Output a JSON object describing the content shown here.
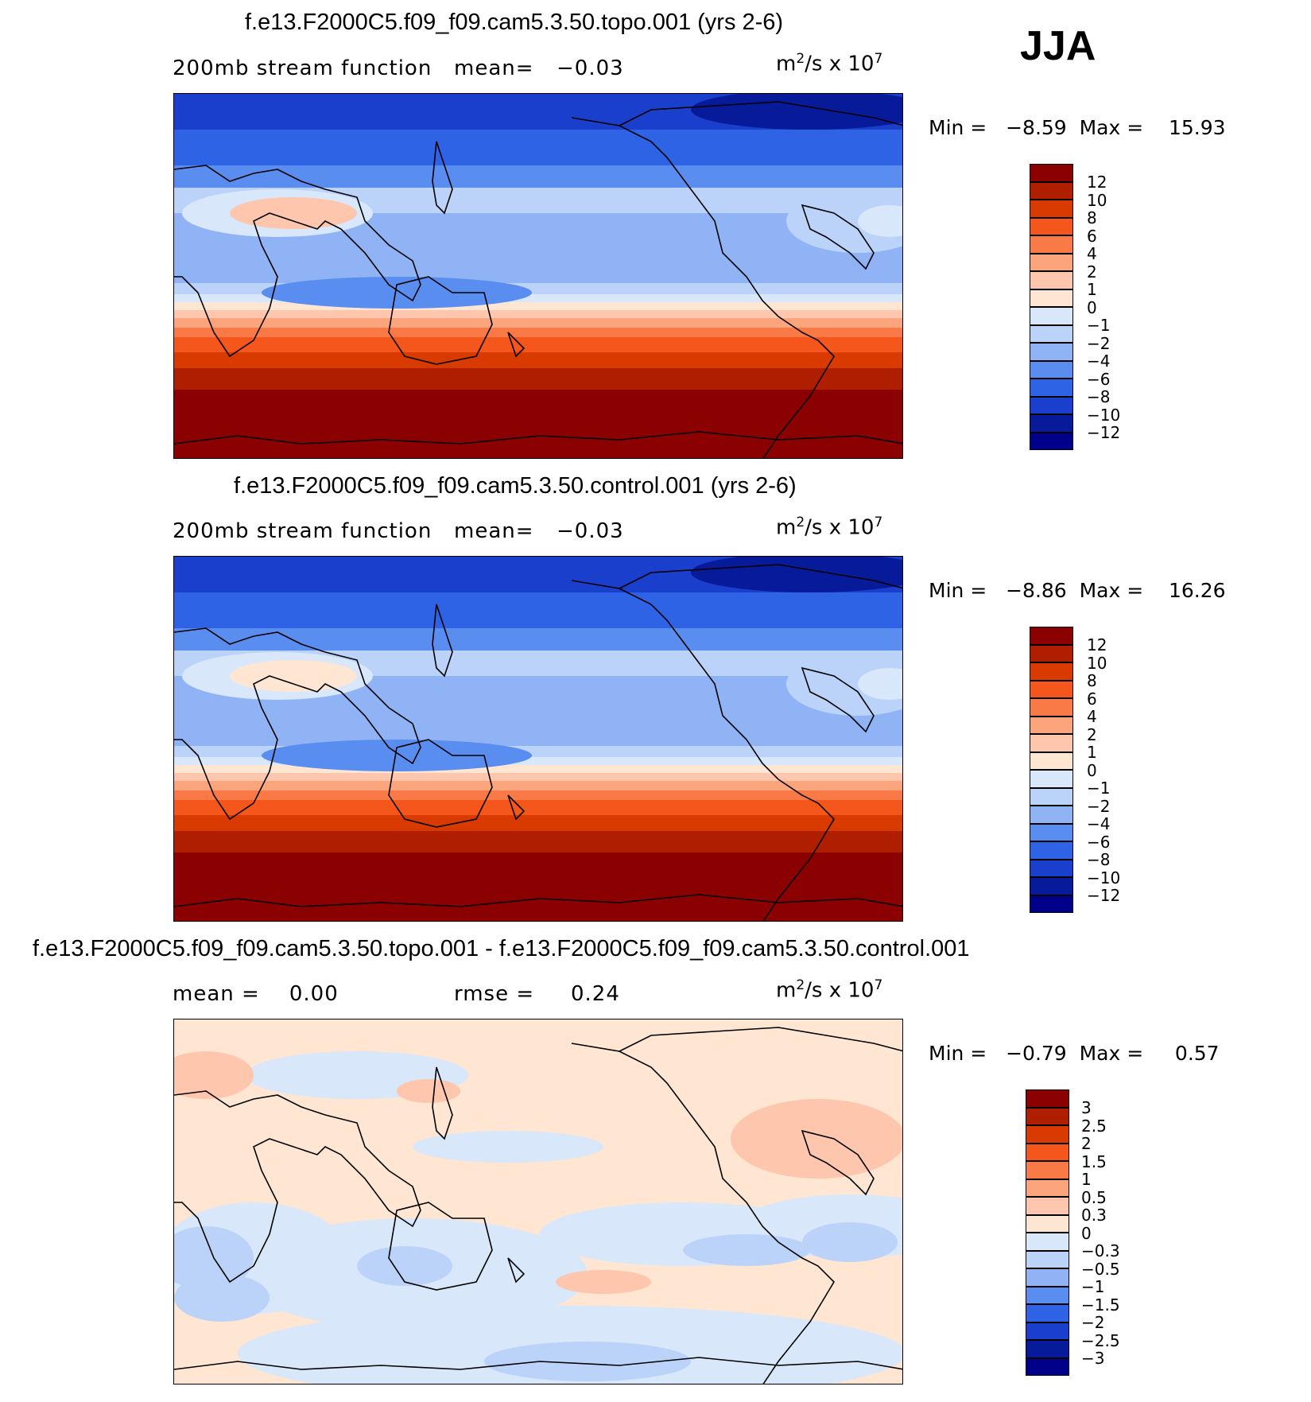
{
  "season": "JJA",
  "panels": [
    {
      "title": "f.e13.F2000C5.f09_f09.cam5.3.50.topo.001 (yrs 2-6)",
      "left_text": "200mb stream function",
      "mid_text": "mean=",
      "mid_value": "−0.03",
      "units_base": "m",
      "units_exp1": "2",
      "units_mid": "/s x 10",
      "units_exp2": "7",
      "minmax": "Min =   −8.59  Max =    15.93",
      "colorbar": [
        "12",
        "10",
        "8",
        "6",
        "4",
        "2",
        "1",
        "0",
        "−1",
        "−2",
        "−4",
        "−6",
        "−8",
        "−10",
        "−12"
      ]
    },
    {
      "title": "f.e13.F2000C5.f09_f09.cam5.3.50.control.001 (yrs 2-6)",
      "left_text": "200mb stream function",
      "mid_text": "mean=",
      "mid_value": "−0.03",
      "units_base": "m",
      "units_exp1": "2",
      "units_mid": "/s x 10",
      "units_exp2": "7",
      "minmax": "Min =   −8.86  Max =    16.26",
      "colorbar": [
        "12",
        "10",
        "8",
        "6",
        "4",
        "2",
        "1",
        "0",
        "−1",
        "−2",
        "−4",
        "−6",
        "−8",
        "−10",
        "−12"
      ]
    },
    {
      "title": "f.e13.F2000C5.f09_f09.cam5.3.50.topo.001 - f.e13.F2000C5.f09_f09.cam5.3.50.control.001",
      "left_text": "mean =    0.00",
      "mid_text": "rmse =",
      "mid_value": "0.24",
      "units_base": "m",
      "units_exp1": "2",
      "units_mid": "/s x 10",
      "units_exp2": "7",
      "minmax": "Min =   −0.79  Max =     0.57",
      "colorbar": [
        "3",
        "2.5",
        "2",
        "1.5",
        "1",
        "0.5",
        "0.3",
        "0",
        "−0.3",
        "−0.5",
        "−1",
        "−1.5",
        "−2",
        "−2.5",
        "−3"
      ]
    }
  ],
  "colors": {
    "scale": [
      "#8b0000",
      "#b01e00",
      "#d93a00",
      "#f4561c",
      "#fa7a47",
      "#fca47c",
      "#fec6ac",
      "#fee6d2",
      "#d8e7fa",
      "#bbd3f8",
      "#8fb3f4",
      "#5a8df0",
      "#2e63e6",
      "#1a3fcc",
      "#061a9a",
      "#00008b"
    ]
  }
}
